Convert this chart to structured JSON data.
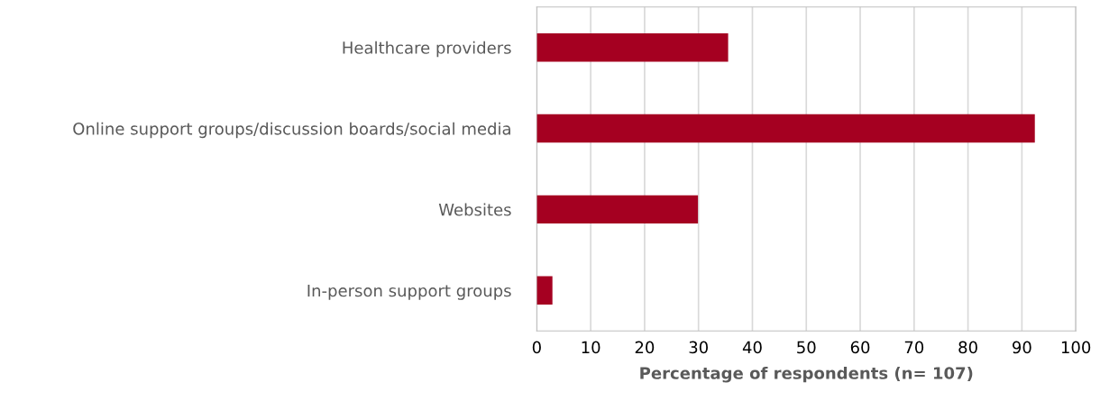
{
  "chart_data": {
    "type": "bar",
    "orientation": "horizontal",
    "xlabel": "Percentage of respondents (n= 107)",
    "categories": [
      "Healthcare providers",
      "Online support groups/discussion boards/social media",
      "Websites",
      "In-person support groups"
    ],
    "values": [
      35.5,
      92.4,
      29.9,
      2.9
    ],
    "color": "#a50021",
    "xlim": [
      0,
      100
    ],
    "xticks": [
      0,
      10,
      20,
      30,
      40,
      50,
      60,
      70,
      80,
      90,
      100
    ],
    "grid": "x",
    "legend": false
  }
}
